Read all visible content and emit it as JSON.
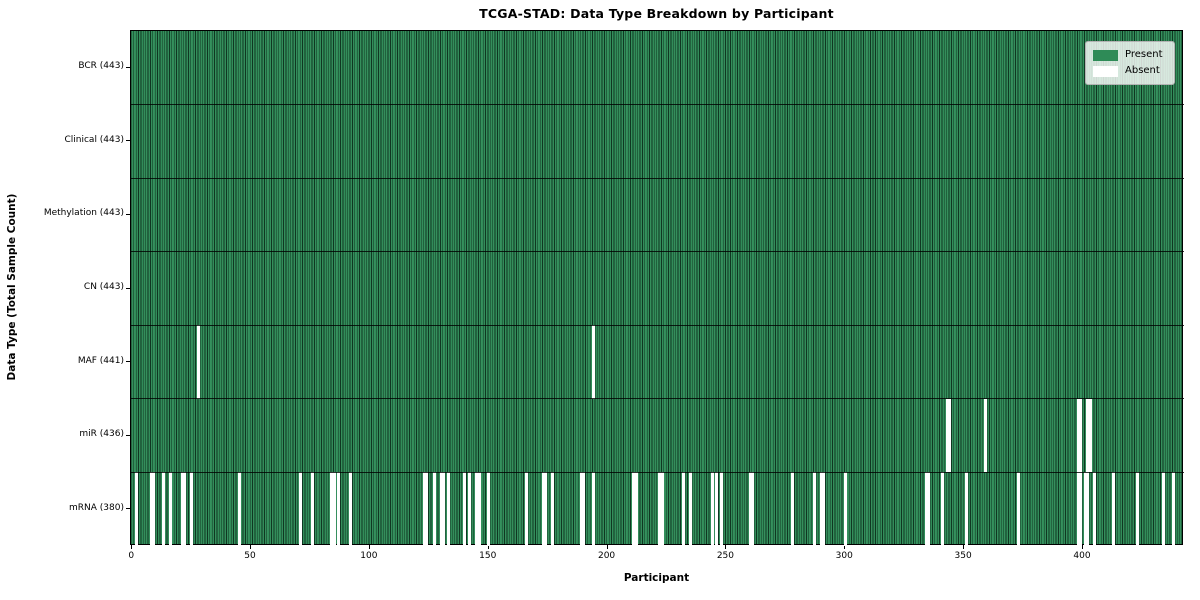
{
  "title": "TCGA-STAD: Data Type Breakdown by Participant",
  "xlabel": "Participant",
  "ylabel": "Data Type (Total Sample Count)",
  "n_participants": 443,
  "x_ticks": [
    0,
    50,
    100,
    150,
    200,
    250,
    300,
    350,
    400
  ],
  "colors": {
    "present": "#2e8b57",
    "present_edge": "#0a2818",
    "absent": "#ffffff",
    "axis": "#000000",
    "legend_border": "#b3b3b3"
  },
  "legend": {
    "entries": [
      {
        "label": "Present",
        "color_key": "present"
      },
      {
        "label": "Absent",
        "color_key": "absent"
      }
    ]
  },
  "chart_data": {
    "type": "heatmap",
    "title": "TCGA-STAD: Data Type Breakdown by Participant",
    "xlabel": "Participant",
    "ylabel": "Data Type (Total Sample Count)",
    "x_range": [
      0,
      442
    ],
    "grid": false,
    "legend_position": "upper right",
    "legend_entries": [
      "Present",
      "Absent"
    ],
    "value_encoding": {
      "present": "seagreen cell",
      "absent": "white cell"
    },
    "rows": [
      {
        "label": "BCR (443)",
        "data_type": "BCR",
        "present_count": 443,
        "absent_participants": []
      },
      {
        "label": "Clinical (443)",
        "data_type": "Clinical",
        "present_count": 443,
        "absent_participants": []
      },
      {
        "label": "Methylation (443)",
        "data_type": "Methylation",
        "present_count": 443,
        "absent_participants": []
      },
      {
        "label": "CN (443)",
        "data_type": "CN",
        "present_count": 443,
        "absent_participants": []
      },
      {
        "label": "MAF (441)",
        "data_type": "MAF",
        "present_count": 441,
        "absent_participants": [
          28,
          194
        ]
      },
      {
        "label": "miR (436)",
        "data_type": "miR",
        "present_count": 436,
        "absent_participants": [
          343,
          344,
          359,
          398,
          399,
          402,
          403
        ]
      },
      {
        "label": "mRNA (380)",
        "data_type": "mRNA",
        "present_count": 380,
        "absent_participants": [
          2,
          8,
          9,
          13,
          16,
          21,
          22,
          25,
          45,
          71,
          76,
          84,
          85,
          87,
          92,
          123,
          124,
          127,
          130,
          131,
          133,
          140,
          142,
          145,
          146,
          150,
          166,
          173,
          174,
          177,
          189,
          190,
          194,
          211,
          212,
          222,
          223,
          232,
          235,
          244,
          246,
          248,
          260,
          261,
          278,
          287,
          290,
          291,
          300,
          334,
          335,
          341,
          351,
          373,
          398,
          399,
          401,
          402,
          405,
          413,
          423,
          434,
          438
        ]
      }
    ]
  }
}
